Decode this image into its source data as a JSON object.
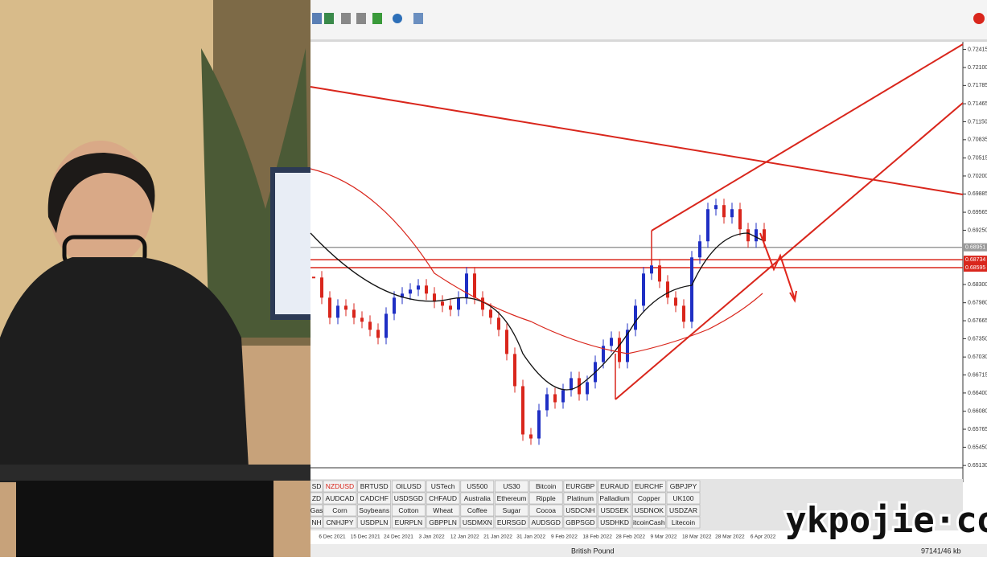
{
  "chart": {
    "type": "candlestick",
    "ylim": [
      0.6509,
      0.7255
    ],
    "yticks": [
      {
        "value": 0.72415,
        "label": "0.72415"
      },
      {
        "value": 0.721,
        "label": "0.72100"
      },
      {
        "value": 0.71785,
        "label": "0.71785"
      },
      {
        "value": 0.71465,
        "label": "0.71465"
      },
      {
        "value": 0.7115,
        "label": "0.71150"
      },
      {
        "value": 0.70835,
        "label": "0.70835"
      },
      {
        "value": 0.70515,
        "label": "0.70515"
      },
      {
        "value": 0.702,
        "label": "0.70200"
      },
      {
        "value": 0.69885,
        "label": "0.69885"
      },
      {
        "value": 0.69565,
        "label": "0.69565"
      },
      {
        "value": 0.6925,
        "label": "0.69250"
      },
      {
        "value": 0.683,
        "label": "0.68300"
      },
      {
        "value": 0.6798,
        "label": "0.67980"
      },
      {
        "value": 0.67665,
        "label": "0.67665"
      },
      {
        "value": 0.6735,
        "label": "0.67350"
      },
      {
        "value": 0.6703,
        "label": "0.67030"
      },
      {
        "value": 0.66715,
        "label": "0.66715"
      },
      {
        "value": 0.664,
        "label": "0.66400"
      },
      {
        "value": 0.6608,
        "label": "0.66080"
      },
      {
        "value": 0.65765,
        "label": "0.65765"
      },
      {
        "value": 0.6545,
        "label": "0.65450"
      },
      {
        "value": 0.6513,
        "label": "0.65130"
      }
    ],
    "levels": [
      {
        "value": 0.68951,
        "label": "0.68951",
        "color": "#9a9a9a"
      },
      {
        "value": 0.68734,
        "label": "0.68734",
        "color": "#d9261c"
      },
      {
        "value": 0.68595,
        "label": "0.68595",
        "color": "#d9261c"
      }
    ],
    "up_color": "#1f2fc4",
    "down_color": "#d9261c",
    "closes": [
      0.68422,
      0.68069,
      0.67717,
      0.67928,
      0.67858,
      0.67717,
      0.67647,
      0.67506,
      0.67365,
      0.67787,
      0.68069,
      0.6814,
      0.6821,
      0.68281,
      0.6814,
      0.67999,
      0.67928,
      0.67858,
      0.68069,
      0.68492,
      0.68069,
      0.67858,
      0.67717,
      0.67506,
      0.67083,
      0.66519,
      0.65674,
      0.65603,
      0.66097,
      0.66378,
      0.66237,
      0.66449,
      0.6666,
      0.66378,
      0.6659,
      0.66942,
      0.67224,
      0.67365,
      0.66942,
      0.67506,
      0.67928,
      0.68492,
      0.68633,
      0.68351,
      0.68069,
      0.67928,
      0.67647,
      0.68774,
      0.69056,
      0.69619,
      0.6969,
      0.69478,
      0.69619,
      0.69267,
      0.69056,
      0.69267,
      0.69056
    ],
    "dates": [
      "6 Dec 2021",
      "15 Dec 2021",
      "24 Dec 2021",
      "3 Jan 2022",
      "12 Jan 2022",
      "21 Jan 2022",
      "31 Jan 2022",
      "9 Feb 2022",
      "18 Feb 2022",
      "28 Feb 2022",
      "9 Mar 2022",
      "18 Mar 2022",
      "28 Mar 2022",
      "6 Apr 2022"
    ]
  },
  "tabs": [
    [
      "SD",
      "NZDUSD",
      "BRTUSD",
      "OILUSD",
      "USTech",
      "US500",
      "US30",
      "Bitcoin",
      "EURGBP",
      "EURAUD",
      "EURCHF",
      "GBPJPY"
    ],
    [
      "ZD",
      "AUDCAD",
      "CADCHF",
      "USDSGD",
      "CHFAUD",
      "Australia",
      "Ethereum",
      "Ripple",
      "Platinum",
      "Palladium",
      "Copper",
      "UK100"
    ],
    [
      "Gas",
      "Corn",
      "Soybeans",
      "Cotton",
      "Wheat",
      "Coffee",
      "Sugar",
      "Cocoa",
      "USDCNH",
      "USDSEK",
      "USDNOK",
      "USDZAR"
    ],
    [
      "NH",
      "CNHJPY",
      "USDPLN",
      "EURPLN",
      "GBPPLN",
      "USDMXN",
      "EURSGD",
      "AUDSGD",
      "GBPSGD",
      "USDHKD",
      "itcoinCash",
      "Litecoin"
    ]
  ],
  "status": {
    "symbol": "British Pound",
    "traffic": "97141/46 kb"
  },
  "watermark": "ykpojie·com"
}
